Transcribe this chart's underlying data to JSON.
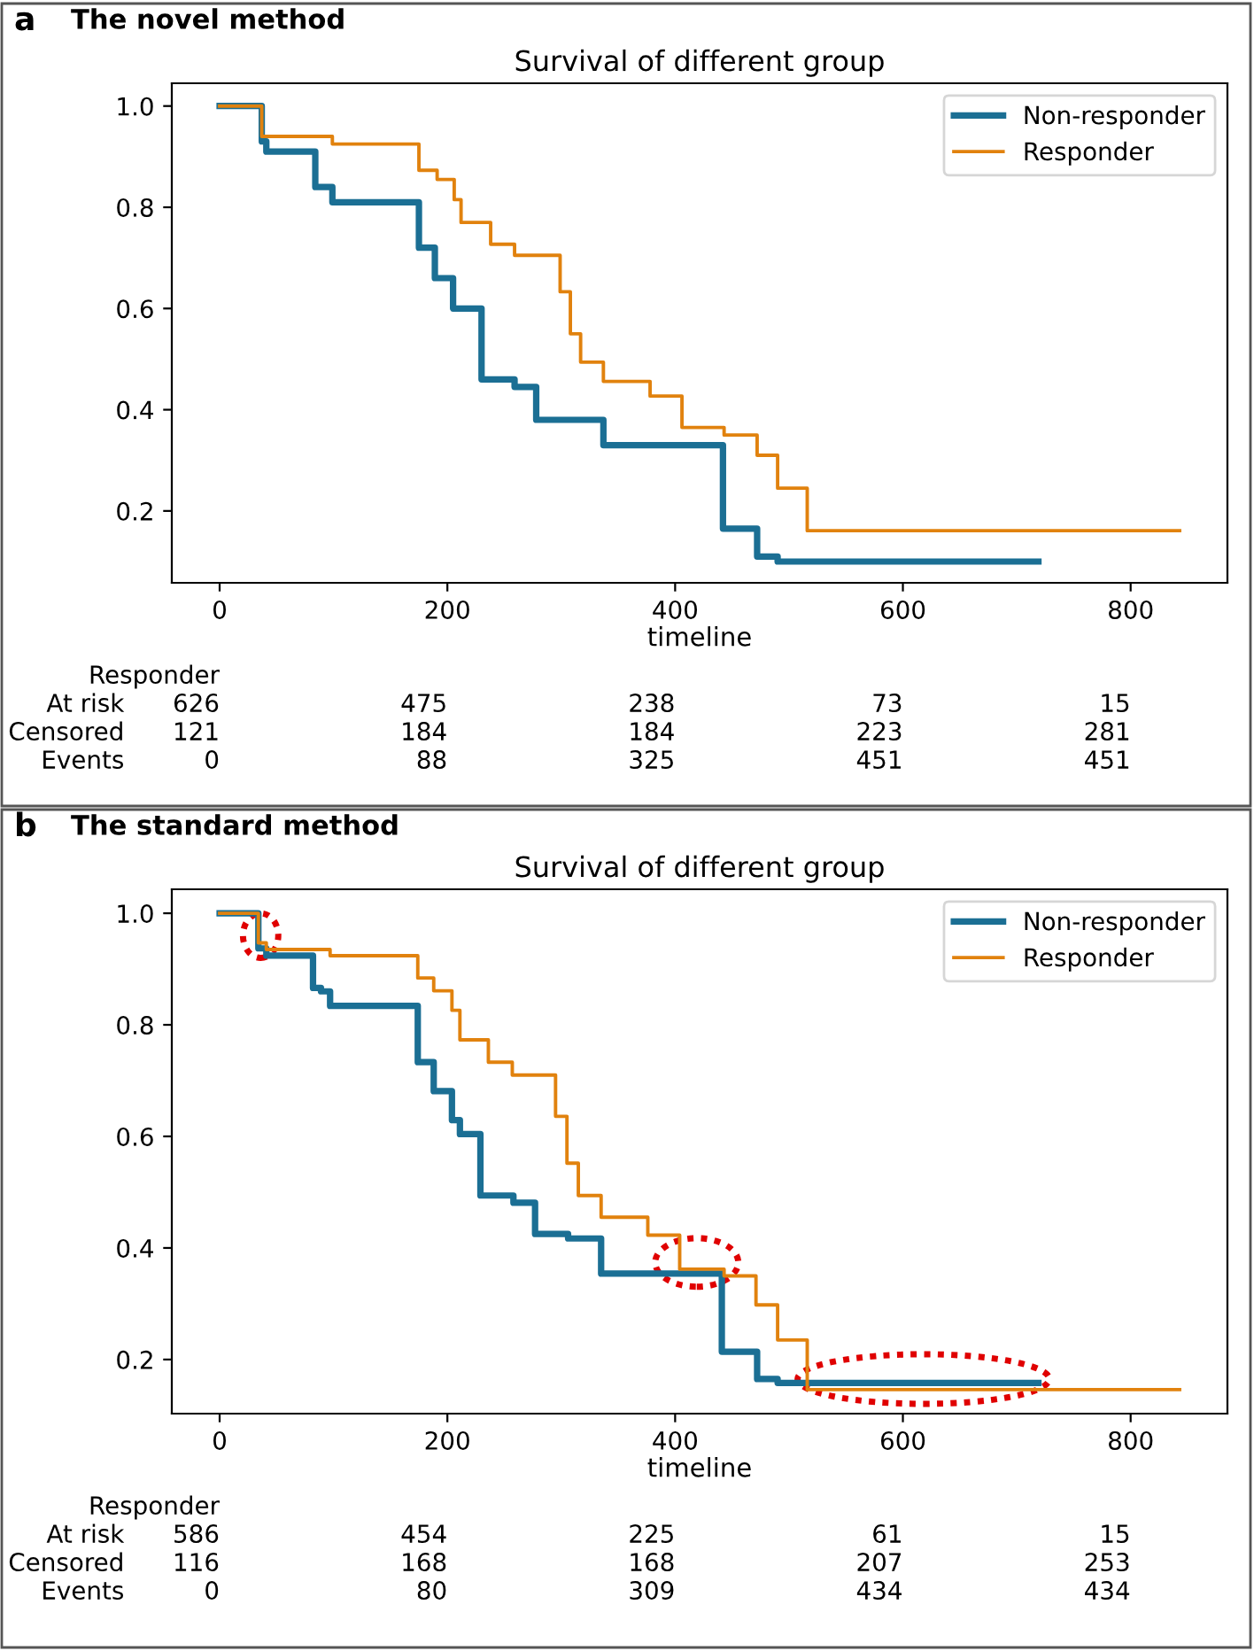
{
  "chart_data": [
    {
      "type": "step",
      "title": "Survival of different group",
      "subtitle": "The novel method",
      "xlabel": "timeline",
      "xlim": [
        -42,
        885
      ],
      "ylim": [
        0.058,
        1.045
      ],
      "xticks": [
        0,
        200,
        400,
        600,
        800
      ],
      "yticks": [
        0.2,
        0.4,
        0.6,
        0.8,
        {
          "value": 1,
          "label": "1.0"
        }
      ],
      "grid": false,
      "legend": "top right",
      "line_style": "solid",
      "marker": "none",
      "series": [
        {
          "name": "Non-responder",
          "color": "#1b6f94",
          "x": [
            0,
            37,
            41,
            84,
            99,
            175,
            189,
            205,
            230,
            259,
            278,
            337,
            442,
            472,
            490,
            719
          ],
          "values": [
            1.0,
            0.93,
            0.91,
            0.84,
            0.81,
            0.72,
            0.66,
            0.6,
            0.46,
            0.445,
            0.38,
            0.33,
            0.165,
            0.11,
            0.1,
            0.1
          ]
        },
        {
          "name": "Responder",
          "color": "#e1820e",
          "x": [
            0,
            37,
            99,
            175,
            191,
            206,
            212,
            238,
            259,
            299,
            308,
            317,
            337,
            378,
            406,
            443,
            472,
            490,
            516,
            843
          ],
          "values": [
            1.0,
            0.94,
            0.925,
            0.873,
            0.855,
            0.815,
            0.77,
            0.727,
            0.705,
            0.633,
            0.55,
            0.494,
            0.456,
            0.427,
            0.365,
            0.35,
            0.31,
            0.245,
            0.161,
            0.161
          ]
        }
      ],
      "annotations": [
        "a",
        "Responder",
        "At risk",
        "Censored",
        "Events",
        "626",
        "475",
        "238",
        "73",
        "15",
        "121",
        "184",
        "184",
        "223",
        "281",
        "0",
        "88",
        "325",
        "451",
        "451"
      ]
    },
    {
      "type": "step",
      "title": "Survival of different group",
      "subtitle": "The standard method",
      "xlabel": "timeline",
      "xlim": [
        -42,
        885
      ],
      "ylim": [
        0.103,
        1.043
      ],
      "xticks": [
        0,
        200,
        400,
        600,
        800
      ],
      "yticks": [
        0.2,
        0.4,
        0.6,
        0.8,
        {
          "value": 1,
          "label": "1.0"
        }
      ],
      "grid": false,
      "legend": "top right",
      "line_style": "solid",
      "marker": "none",
      "series": [
        {
          "name": "Non-responder",
          "color": "#1b6f94",
          "x": [
            0,
            34,
            41,
            82,
            89,
            97,
            174,
            188,
            204,
            211,
            229,
            258,
            277,
            306,
            335,
            441,
            472,
            490,
            719
          ],
          "values": [
            1.0,
            0.937,
            0.924,
            0.866,
            0.86,
            0.834,
            0.733,
            0.681,
            0.629,
            0.604,
            0.494,
            0.481,
            0.425,
            0.417,
            0.354,
            0.214,
            0.165,
            0.158,
            0.158
          ]
        },
        {
          "name": "Responder",
          "color": "#e1820e",
          "x": [
            0,
            34,
            41,
            97,
            174,
            188,
            204,
            211,
            236,
            257,
            295,
            305,
            315,
            335,
            376,
            404,
            443,
            471,
            490,
            516,
            843
          ],
          "values": [
            1.0,
            0.947,
            0.935,
            0.924,
            0.884,
            0.861,
            0.826,
            0.773,
            0.733,
            0.71,
            0.636,
            0.552,
            0.494,
            0.455,
            0.423,
            0.362,
            0.35,
            0.298,
            0.235,
            0.146,
            0.146
          ]
        }
      ],
      "annotations": [
        "b",
        "Responder",
        "At risk",
        "Censored",
        "Events",
        "586",
        "454",
        "225",
        "61",
        "15",
        "116",
        "168",
        "168",
        "207",
        "253",
        "0",
        "80",
        "309",
        "434",
        "434"
      ]
    }
  ]
}
